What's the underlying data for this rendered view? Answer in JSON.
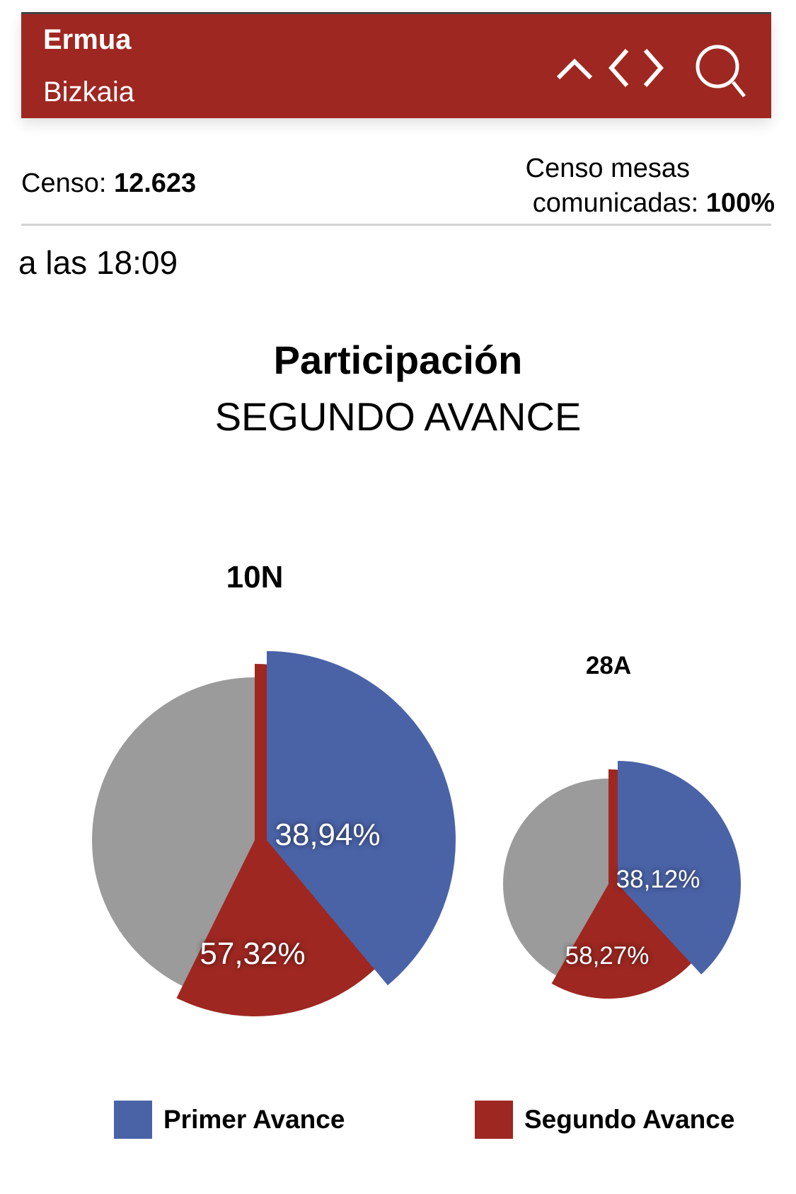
{
  "header": {
    "title": "Ermua",
    "subtitle": "Bizkaia"
  },
  "icons": [
    "chevron-up-icon",
    "chevron-left-icon",
    "chevron-right-icon",
    "search-icon"
  ],
  "stats": {
    "censo_label": "Censo:",
    "censo_value": "12.623",
    "mesas_label_1": "Censo mesas",
    "mesas_label_2": "comunicadas:",
    "mesas_value": "100%"
  },
  "time": "a las 18:09",
  "title": "Participación",
  "subtitle": "SEGUNDO AVANCE",
  "colors": {
    "primer": "#4a63a7",
    "segundo": "#9e2721",
    "rest": "#9b9b9b",
    "header": "#9e2721"
  },
  "chart_data": {
    "type": "pie",
    "title": "Participación",
    "subtitle": "SEGUNDO AVANCE",
    "legend": [
      "Primer Avance",
      "Segundo Avance"
    ],
    "legend_position": "bottom",
    "charts": [
      {
        "name": "10N",
        "primer": 38.94,
        "segundo": 57.32,
        "primer_label": "38,94%",
        "segundo_label": "57,32%"
      },
      {
        "name": "28A",
        "primer": 38.12,
        "segundo": 58.27,
        "primer_label": "38,12%",
        "segundo_label": "58,27%"
      }
    ]
  }
}
